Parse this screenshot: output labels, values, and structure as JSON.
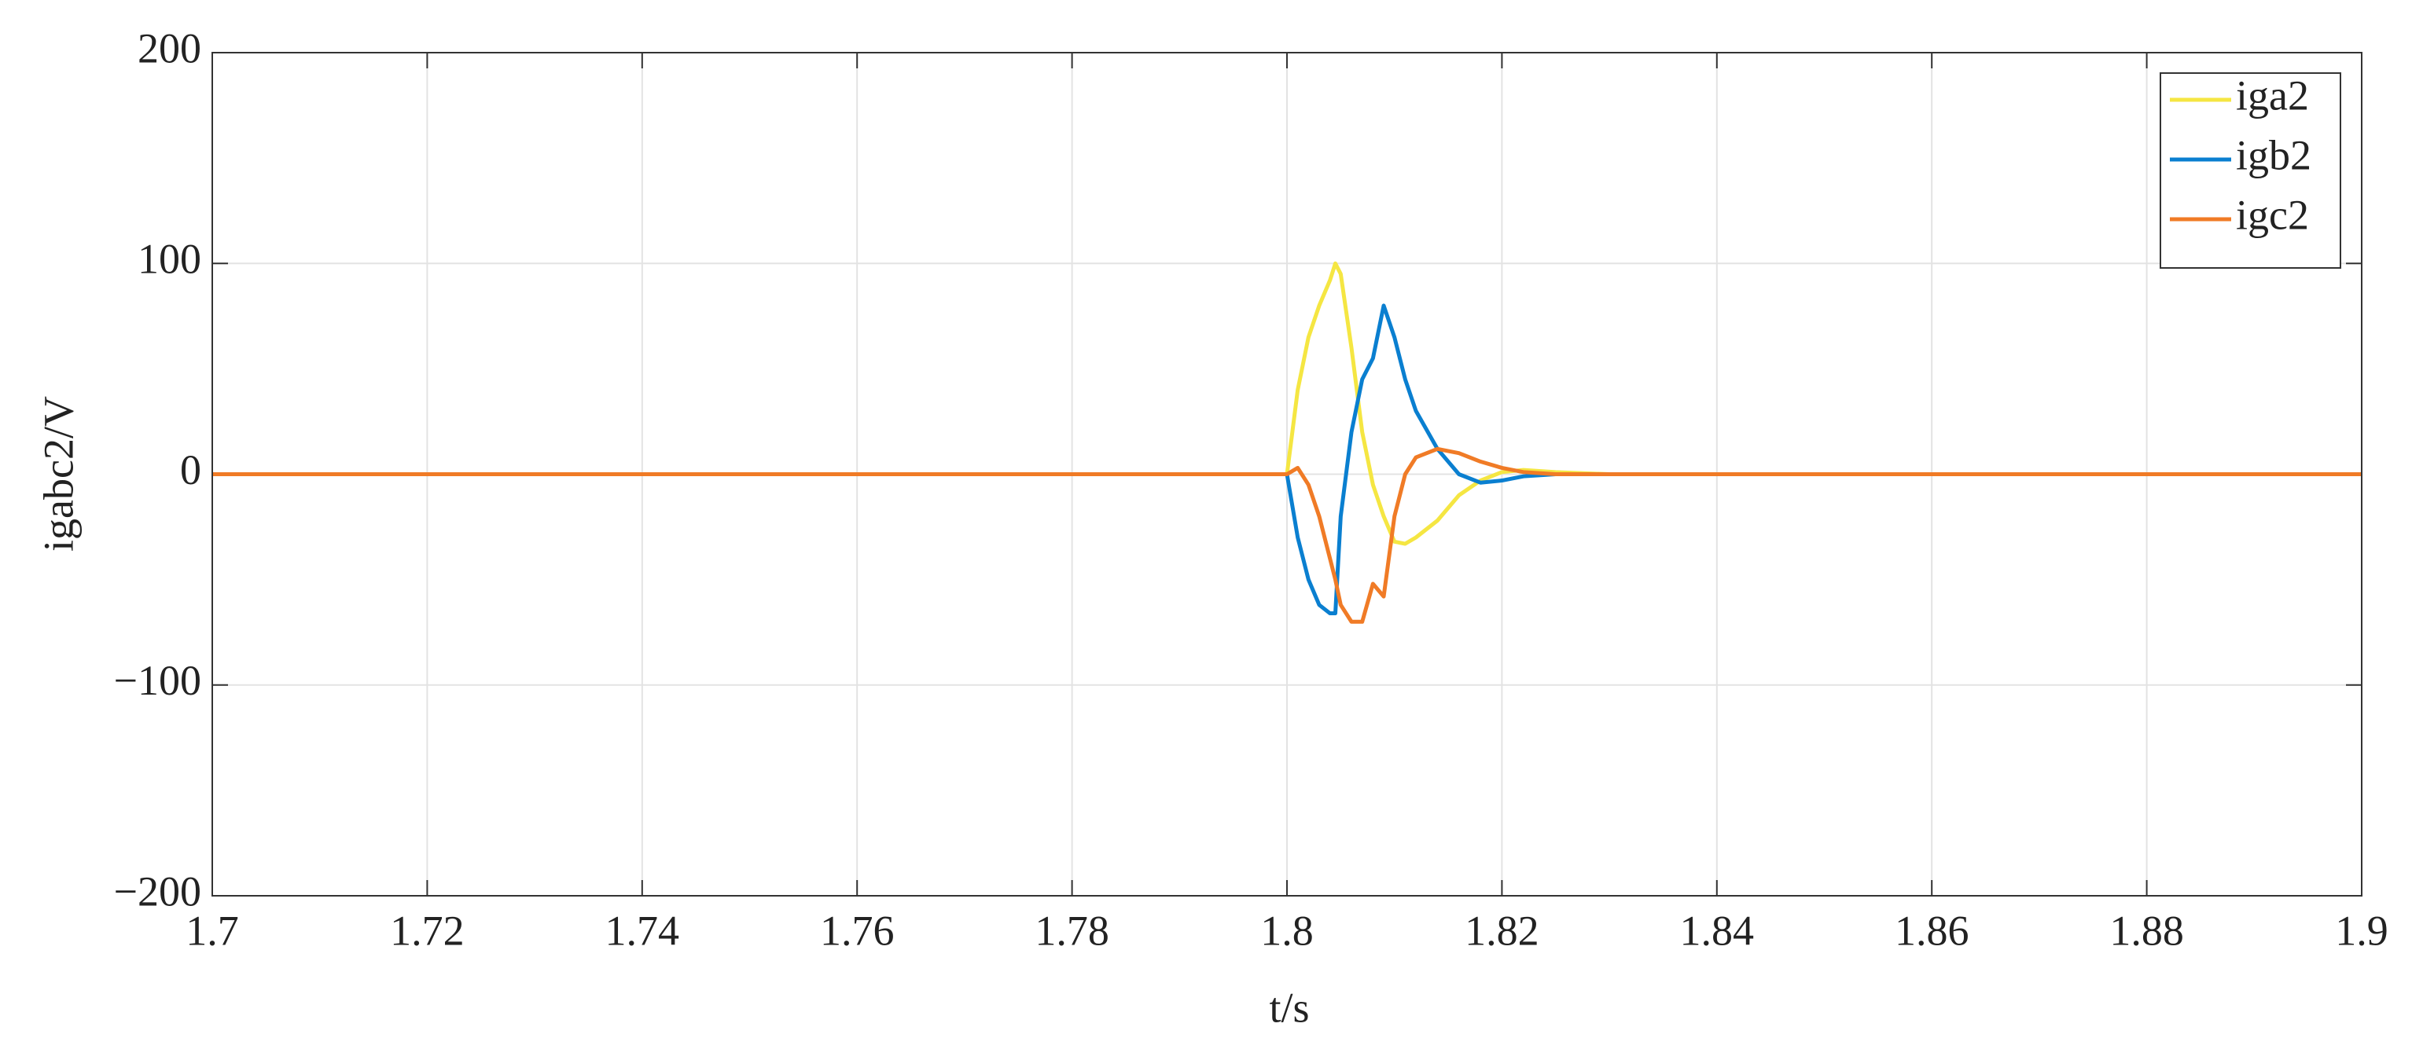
{
  "chart_data": {
    "type": "line",
    "xlabel": "t/s",
    "ylabel": "igabc2/V",
    "x": [
      1.7,
      1.8,
      1.801,
      1.802,
      1.803,
      1.804,
      1.8045,
      1.805,
      1.806,
      1.807,
      1.808,
      1.809,
      1.81,
      1.811,
      1.812,
      1.814,
      1.816,
      1.818,
      1.82,
      1.822,
      1.825,
      1.83,
      1.9
    ],
    "series": [
      {
        "name": "iga2",
        "color": "#f5e642",
        "values": [
          0,
          0,
          40,
          65,
          80,
          92,
          100,
          95,
          60,
          20,
          -5,
          -20,
          -32,
          -33,
          -30,
          -22,
          -10,
          -3,
          1,
          2,
          1,
          0,
          0
        ]
      },
      {
        "name": "igb2",
        "color": "#0a7fd0",
        "values": [
          0,
          0,
          -30,
          -50,
          -62,
          -66,
          -66,
          -20,
          20,
          45,
          55,
          80,
          65,
          45,
          30,
          12,
          0,
          -4,
          -3,
          -1,
          0,
          0,
          0
        ]
      },
      {
        "name": "igc2",
        "color": "#f07b26",
        "values": [
          0,
          0,
          3,
          -5,
          -20,
          -40,
          -50,
          -62,
          -70,
          -70,
          -52,
          -58,
          -20,
          0,
          8,
          12,
          10,
          6,
          3,
          1,
          0,
          0,
          0
        ]
      }
    ],
    "xlim": [
      1.7,
      1.9
    ],
    "xticks": [
      1.7,
      1.72,
      1.74,
      1.76,
      1.78,
      1.8,
      1.82,
      1.84,
      1.86,
      1.88,
      1.9
    ],
    "ylim": [
      -200,
      200
    ],
    "yticks": [
      {
        "value": -200,
        "label": "−200"
      },
      {
        "value": -100,
        "label": "−100"
      },
      0,
      100,
      200
    ],
    "grid": true,
    "legend": "upper right"
  }
}
